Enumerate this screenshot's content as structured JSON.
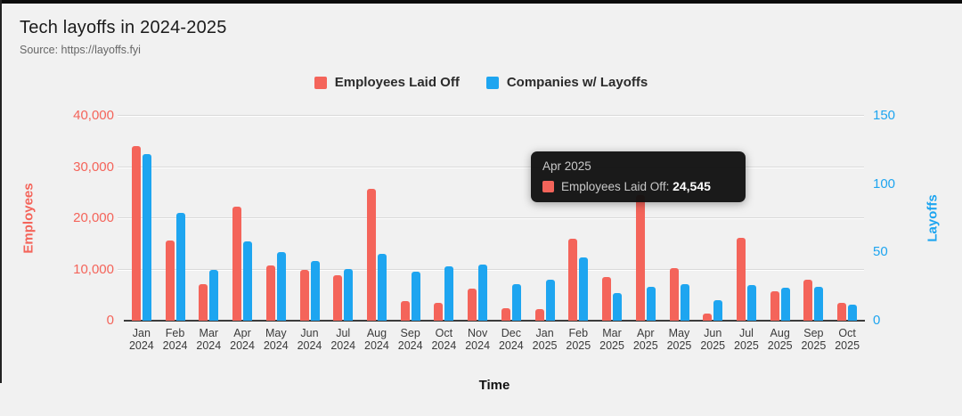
{
  "header": {
    "title": "Tech layoffs in 2024-2025",
    "source": "Source: https://layoffs.fyi"
  },
  "legend": [
    {
      "label": "Employees Laid Off",
      "color": "#f4645a"
    },
    {
      "label": "Companies w/ Layoffs",
      "color": "#1ea5f0"
    }
  ],
  "tooltip": {
    "title": "Apr 2025",
    "series_label": "Employees Laid Off",
    "value": "24,545",
    "color": "#f4645a"
  },
  "chart_data": {
    "type": "bar",
    "title": "Tech layoffs in 2024-2025",
    "xlabel": "Time",
    "ylabel_left": "Employees",
    "ylabel_right": "Layoffs",
    "ylim_left": [
      0,
      40000
    ],
    "ylim_right": [
      0,
      150
    ],
    "yticks_left": [
      "0",
      "10,000",
      "20,000",
      "30,000",
      "40,000"
    ],
    "yticks_right": [
      "0",
      "50",
      "100",
      "150"
    ],
    "grid": true,
    "legend_position": "top",
    "categories": [
      "Jan 2024",
      "Feb 2024",
      "Mar 2024",
      "Apr 2024",
      "May 2024",
      "Jun 2024",
      "Jul 2024",
      "Aug 2024",
      "Sep 2024",
      "Oct 2024",
      "Nov 2024",
      "Dec 2024",
      "Jan 2025",
      "Feb 2025",
      "Mar 2025",
      "Apr 2025",
      "May 2025",
      "Jun 2025",
      "Jul 2025",
      "Aug 2025",
      "Sep 2025",
      "Oct 2025"
    ],
    "series": [
      {
        "name": "Employees Laid Off",
        "axis": "left",
        "color": "#f4645a",
        "values": [
          34100,
          15600,
          7200,
          22300,
          10700,
          10000,
          8900,
          25800,
          3900,
          3500,
          6300,
          2400,
          2200,
          16000,
          8500,
          24545,
          10300,
          1400,
          16100,
          5700,
          8000,
          3400
        ]
      },
      {
        "name": "Companies w/ Layoffs",
        "axis": "right",
        "color": "#1ea5f0",
        "values": [
          122,
          79,
          37,
          58,
          50,
          44,
          38,
          49,
          36,
          40,
          41,
          27,
          30,
          46,
          20,
          25,
          27,
          15,
          26,
          24,
          25,
          12
        ]
      }
    ]
  }
}
